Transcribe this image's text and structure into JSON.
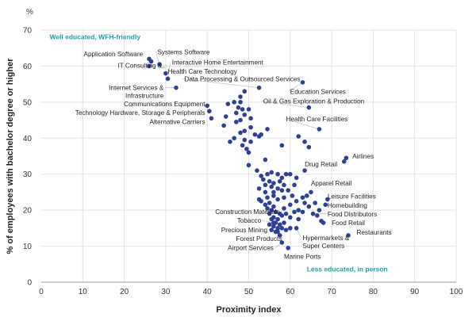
{
  "chart_data": {
    "type": "scatter",
    "title": "",
    "xlabel": "Proximity index",
    "ylabel": "% of employees with bachelor degree or higher",
    "y_unit": "%",
    "xlim": [
      0,
      100
    ],
    "ylim": [
      0,
      70
    ],
    "x_ticks": [
      0,
      10,
      20,
      30,
      40,
      50,
      60,
      70,
      80,
      90,
      100
    ],
    "y_ticks": [
      0,
      10,
      20,
      30,
      40,
      50,
      60,
      70
    ],
    "grid": true,
    "marker_color": "#2e3f96",
    "annotation_color": "#1aa3a0",
    "quadrant_notes": [
      {
        "text": "Well educated, WFH-friendly",
        "x": 2,
        "y": 67.5
      },
      {
        "text": "Less educated, in person",
        "x": 64,
        "y": 3
      }
    ],
    "points": [
      {
        "x": 26,
        "y": 62,
        "label": "Application Software",
        "lx": 24.5,
        "ly": 62.7,
        "anchor": "end"
      },
      {
        "x": 28.5,
        "y": 60.5,
        "label": "Systems Software",
        "lx": 28,
        "ly": 63.3,
        "anchor": "start"
      },
      {
        "x": 26.5,
        "y": 61.3,
        "label": "",
        "lx": null,
        "ly": null,
        "anchor": "start"
      },
      {
        "x": 26,
        "y": 60,
        "label": "IT Consulting &..",
        "lx": 30,
        "ly": 59.5,
        "anchor": "end"
      },
      {
        "x": 30.5,
        "y": 56.5,
        "label": "Interactive Home Entertainment",
        "lx": 31.5,
        "ly": 60.4,
        "anchor": "start"
      },
      {
        "x": 30,
        "y": 58,
        "label": "Health Care Technology",
        "lx": 30.5,
        "ly": 57.9,
        "anchor": "start"
      },
      {
        "x": 32.5,
        "y": 54,
        "label": "Internet Services & Infrastructure",
        "lx": 29.5,
        "ly": 53.4,
        "anchor": "end"
      },
      {
        "x": 52.5,
        "y": 54,
        "label": "Data Processing & Outsourced Services",
        "lx": 34.5,
        "ly": 55.8,
        "anchor": "start"
      },
      {
        "x": 63,
        "y": 55.5,
        "label": "Education Services",
        "lx": 60,
        "ly": 52.3,
        "anchor": "start"
      },
      {
        "x": 40,
        "y": 49,
        "label": "Communications Equipment",
        "lx": 39.5,
        "ly": 48.9,
        "anchor": "end"
      },
      {
        "x": 40.5,
        "y": 47.5,
        "label": "Technology Hardware, Storage & Peripherals",
        "lx": 39.5,
        "ly": 46.4,
        "anchor": "end"
      },
      {
        "x": 41,
        "y": 45.5,
        "label": "Alternative Carriers",
        "lx": 39.5,
        "ly": 43.9,
        "anchor": "end"
      },
      {
        "x": 64.5,
        "y": 48.5,
        "label": "Oil & Gas Exploration & Production",
        "lx": 53.5,
        "ly": 49.6,
        "anchor": "start"
      },
      {
        "x": 67,
        "y": 42.5,
        "label": "Health Care Facilities",
        "lx": 59,
        "ly": 44.7,
        "anchor": "start"
      },
      {
        "x": 73.5,
        "y": 34.5,
        "label": "Airlines",
        "lx": 75,
        "ly": 34.3,
        "anchor": "start"
      },
      {
        "x": 73,
        "y": 33.5,
        "label": "",
        "lx": null,
        "ly": null,
        "anchor": "start"
      },
      {
        "x": 63.5,
        "y": 31,
        "label": "Drug Retail",
        "lx": 63.5,
        "ly": 32.1,
        "anchor": "start"
      },
      {
        "x": 65,
        "y": 25,
        "label": "Apparel Retail",
        "lx": 65,
        "ly": 26.9,
        "anchor": "start"
      },
      {
        "x": 69,
        "y": 23,
        "label": "Leisure Facilities",
        "lx": 69,
        "ly": 23.2,
        "anchor": "start"
      },
      {
        "x": 68.5,
        "y": 21.5,
        "label": "Homebuilding",
        "lx": 69,
        "ly": 20.7,
        "anchor": "start"
      },
      {
        "x": 65.5,
        "y": 19,
        "label": "Food Distributors",
        "lx": 69,
        "ly": 18.3,
        "anchor": "start"
      },
      {
        "x": 68,
        "y": 16.5,
        "label": "Food Retail",
        "lx": 70,
        "ly": 15.8,
        "anchor": "start"
      },
      {
        "x": 74,
        "y": 13,
        "label": "Restaurants",
        "lx": 76,
        "ly": 13.2,
        "anchor": "start"
      },
      {
        "x": 58,
        "y": 18.5,
        "label": "Construction Materials",
        "lx": 57.5,
        "ly": 18.9,
        "anchor": "end"
      },
      {
        "x": 56,
        "y": 16.5,
        "label": "Tobacco",
        "lx": 53,
        "ly": 16.5,
        "anchor": "end"
      },
      {
        "x": 57,
        "y": 14,
        "label": "Precious Mining",
        "lx": 54.5,
        "ly": 13.9,
        "anchor": "end"
      },
      {
        "x": 57.5,
        "y": 13,
        "label": "Forest Products",
        "lx": 58,
        "ly": 11.4,
        "anchor": "end"
      },
      {
        "x": 58,
        "y": 11,
        "label": "Airport Services",
        "lx": 56,
        "ly": 8.9,
        "anchor": "end"
      },
      {
        "x": 59.5,
        "y": 9.5,
        "label": "Marine Ports",
        "lx": 58.5,
        "ly": 6.5,
        "anchor": "start"
      },
      {
        "x": 61.5,
        "y": 15,
        "label": "Hypermarkets & Super Centers",
        "lx": 63,
        "ly": 11.7,
        "anchor": "start"
      },
      {
        "x": 48,
        "y": 50,
        "label": ""
      },
      {
        "x": 46.5,
        "y": 50,
        "label": ""
      },
      {
        "x": 45,
        "y": 49.5,
        "label": ""
      },
      {
        "x": 47.5,
        "y": 48.5,
        "label": ""
      },
      {
        "x": 48.5,
        "y": 48,
        "label": ""
      },
      {
        "x": 50,
        "y": 48,
        "label": ""
      },
      {
        "x": 47,
        "y": 47,
        "label": ""
      },
      {
        "x": 49,
        "y": 46.5,
        "label": ""
      },
      {
        "x": 50.5,
        "y": 45.5,
        "label": ""
      },
      {
        "x": 49,
        "y": 53,
        "label": ""
      },
      {
        "x": 48,
        "y": 51.5,
        "label": ""
      },
      {
        "x": 44.5,
        "y": 46,
        "label": ""
      },
      {
        "x": 47,
        "y": 44.5,
        "label": ""
      },
      {
        "x": 48,
        "y": 45,
        "label": ""
      },
      {
        "x": 44,
        "y": 43.5,
        "label": ""
      },
      {
        "x": 50.5,
        "y": 43,
        "label": ""
      },
      {
        "x": 49,
        "y": 42,
        "label": ""
      },
      {
        "x": 48,
        "y": 41.5,
        "label": ""
      },
      {
        "x": 51.5,
        "y": 41,
        "label": ""
      },
      {
        "x": 52.5,
        "y": 40.5,
        "label": ""
      },
      {
        "x": 53,
        "y": 41,
        "label": ""
      },
      {
        "x": 54.5,
        "y": 42.5,
        "label": ""
      },
      {
        "x": 46.5,
        "y": 40,
        "label": ""
      },
      {
        "x": 49,
        "y": 39.5,
        "label": ""
      },
      {
        "x": 50.5,
        "y": 39,
        "label": ""
      },
      {
        "x": 48.5,
        "y": 38,
        "label": ""
      },
      {
        "x": 49.5,
        "y": 37,
        "label": ""
      },
      {
        "x": 50,
        "y": 36,
        "label": ""
      },
      {
        "x": 45.5,
        "y": 39,
        "label": ""
      },
      {
        "x": 58,
        "y": 38,
        "label": ""
      },
      {
        "x": 62,
        "y": 40.5,
        "label": ""
      },
      {
        "x": 63.5,
        "y": 39,
        "label": ""
      },
      {
        "x": 64.5,
        "y": 37.5,
        "label": ""
      },
      {
        "x": 54,
        "y": 34,
        "label": ""
      },
      {
        "x": 50,
        "y": 32.5,
        "label": ""
      },
      {
        "x": 52,
        "y": 31,
        "label": ""
      },
      {
        "x": 53,
        "y": 29.5,
        "label": ""
      },
      {
        "x": 54.5,
        "y": 30,
        "label": ""
      },
      {
        "x": 55.5,
        "y": 30.5,
        "label": ""
      },
      {
        "x": 57,
        "y": 30,
        "label": ""
      },
      {
        "x": 58,
        "y": 29,
        "label": ""
      },
      {
        "x": 59,
        "y": 30,
        "label": ""
      },
      {
        "x": 60,
        "y": 30,
        "label": ""
      },
      {
        "x": 53.5,
        "y": 28.5,
        "label": ""
      },
      {
        "x": 55,
        "y": 28,
        "label": ""
      },
      {
        "x": 56,
        "y": 27.5,
        "label": ""
      },
      {
        "x": 57.5,
        "y": 28,
        "label": ""
      },
      {
        "x": 58.5,
        "y": 27,
        "label": ""
      },
      {
        "x": 54,
        "y": 27,
        "label": ""
      },
      {
        "x": 55.5,
        "y": 26.5,
        "label": ""
      },
      {
        "x": 57,
        "y": 26,
        "label": ""
      },
      {
        "x": 58,
        "y": 25.5,
        "label": ""
      },
      {
        "x": 56,
        "y": 25,
        "label": ""
      },
      {
        "x": 54,
        "y": 25,
        "label": ""
      },
      {
        "x": 52.5,
        "y": 26,
        "label": ""
      },
      {
        "x": 59.5,
        "y": 25.5,
        "label": ""
      },
      {
        "x": 61,
        "y": 27,
        "label": ""
      },
      {
        "x": 61.5,
        "y": 29,
        "label": ""
      },
      {
        "x": 52.5,
        "y": 23,
        "label": ""
      },
      {
        "x": 53,
        "y": 22.5,
        "label": ""
      },
      {
        "x": 54,
        "y": 21.5,
        "label": ""
      },
      {
        "x": 55,
        "y": 22,
        "label": ""
      },
      {
        "x": 56,
        "y": 21,
        "label": ""
      },
      {
        "x": 54.5,
        "y": 20.5,
        "label": ""
      },
      {
        "x": 55.5,
        "y": 20,
        "label": ""
      },
      {
        "x": 56.5,
        "y": 19.5,
        "label": ""
      },
      {
        "x": 55,
        "y": 19,
        "label": ""
      },
      {
        "x": 56,
        "y": 18,
        "label": ""
      },
      {
        "x": 57,
        "y": 17.5,
        "label": ""
      },
      {
        "x": 55.5,
        "y": 17.5,
        "label": ""
      },
      {
        "x": 56.5,
        "y": 16.5,
        "label": ""
      },
      {
        "x": 57.5,
        "y": 16,
        "label": ""
      },
      {
        "x": 58.5,
        "y": 16.5,
        "label": ""
      },
      {
        "x": 55,
        "y": 16,
        "label": ""
      },
      {
        "x": 56,
        "y": 15.5,
        "label": ""
      },
      {
        "x": 57,
        "y": 15,
        "label": ""
      },
      {
        "x": 58,
        "y": 15,
        "label": ""
      },
      {
        "x": 59,
        "y": 14.5,
        "label": ""
      },
      {
        "x": 60,
        "y": 15,
        "label": ""
      },
      {
        "x": 55.5,
        "y": 14.5,
        "label": ""
      },
      {
        "x": 56.5,
        "y": 14,
        "label": ""
      },
      {
        "x": 59,
        "y": 19,
        "label": ""
      },
      {
        "x": 60,
        "y": 18,
        "label": ""
      },
      {
        "x": 61,
        "y": 19.5,
        "label": ""
      },
      {
        "x": 62,
        "y": 20,
        "label": ""
      },
      {
        "x": 63,
        "y": 19.5,
        "label": ""
      },
      {
        "x": 60,
        "y": 21.5,
        "label": ""
      },
      {
        "x": 61.5,
        "y": 22.5,
        "label": ""
      },
      {
        "x": 63.5,
        "y": 22,
        "label": ""
      },
      {
        "x": 64.5,
        "y": 21,
        "label": ""
      },
      {
        "x": 66,
        "y": 22,
        "label": ""
      },
      {
        "x": 67,
        "y": 20,
        "label": ""
      },
      {
        "x": 63,
        "y": 23.5,
        "label": ""
      },
      {
        "x": 64,
        "y": 24,
        "label": ""
      },
      {
        "x": 66.5,
        "y": 18.5,
        "label": ""
      },
      {
        "x": 67.5,
        "y": 17,
        "label": ""
      },
      {
        "x": 62,
        "y": 17.5,
        "label": ""
      },
      {
        "x": 54.5,
        "y": 23.5,
        "label": ""
      },
      {
        "x": 57,
        "y": 23,
        "label": ""
      },
      {
        "x": 58.5,
        "y": 23.5,
        "label": ""
      },
      {
        "x": 60.5,
        "y": 24,
        "label": ""
      },
      {
        "x": 56,
        "y": 24,
        "label": ""
      },
      {
        "x": 57.5,
        "y": 19,
        "label": ""
      },
      {
        "x": 58.5,
        "y": 20.5,
        "label": ""
      }
    ]
  }
}
